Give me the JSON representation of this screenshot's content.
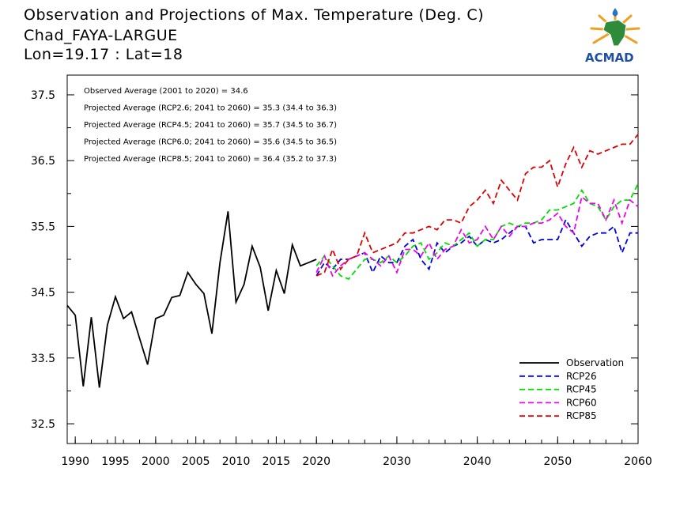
{
  "header": {
    "title": "Observation and Projections of Max. Temperature (Deg. C)",
    "station": "Chad_FAYA-LARGUE",
    "coords": "Lon=19.17 : Lat=18"
  },
  "logo": {
    "text": "ACMAD"
  },
  "annotations": [
    "Observed Average (2001 to 2020) = 34.6",
    "Projected Average (RCP2.6; 2041 to 2060) = 35.3 (34.4 to 36.3)",
    "Projected Average (RCP4.5; 2041 to 2060) = 35.7 (34.5 to 36.7)",
    "Projected Average (RCP6.0; 2041 to 2060) = 35.6 (34.5 to 36.5)",
    "Projected Average (RCP8.5; 2041 to 2060) = 36.4 (35.2 to 37.3)"
  ],
  "chart_data": {
    "type": "line",
    "xlim": [
      1989,
      2060
    ],
    "ylim": [
      32.2,
      37.8
    ],
    "x_ticks": [
      1990,
      1995,
      2000,
      2005,
      2010,
      2015,
      2020,
      2030,
      2040,
      2050,
      2060
    ],
    "y_ticks": [
      32.5,
      33.5,
      34.5,
      35.5,
      36.5,
      37.5
    ],
    "grid": false,
    "legend_position": "bottom-right",
    "series": [
      {
        "name": "Observation",
        "color": "#000000",
        "dashed": false,
        "x": [
          1989,
          1990,
          1991,
          1992,
          1993,
          1994,
          1995,
          1996,
          1997,
          1998,
          1999,
          2000,
          2001,
          2002,
          2003,
          2004,
          2005,
          2006,
          2007,
          2008,
          2009,
          2010,
          2011,
          2012,
          2013,
          2014,
          2015,
          2016,
          2017,
          2018,
          2019,
          2020
        ],
        "y": [
          34.3,
          34.15,
          33.07,
          34.12,
          33.05,
          34.0,
          34.43,
          34.1,
          34.2,
          33.8,
          33.4,
          34.1,
          34.15,
          34.42,
          34.45,
          34.8,
          34.62,
          34.48,
          33.87,
          34.95,
          35.73,
          34.35,
          34.62,
          35.2,
          34.88,
          34.22,
          34.83,
          34.48,
          35.22,
          34.9,
          34.95,
          35.0
        ]
      },
      {
        "name": "RCP26",
        "color": "#0000e0",
        "dashed": true,
        "x": [
          2020,
          2021,
          2022,
          2023,
          2024,
          2025,
          2026,
          2027,
          2028,
          2029,
          2030,
          2031,
          2032,
          2033,
          2034,
          2035,
          2036,
          2037,
          2038,
          2039,
          2040,
          2041,
          2042,
          2043,
          2044,
          2045,
          2046,
          2047,
          2048,
          2049,
          2050,
          2051,
          2052,
          2053,
          2054,
          2055,
          2056,
          2057,
          2058,
          2059,
          2060
        ],
        "y": [
          34.75,
          34.95,
          34.85,
          35.0,
          35.0,
          35.05,
          35.1,
          34.8,
          35.05,
          34.95,
          34.95,
          35.2,
          35.3,
          35.0,
          34.85,
          35.25,
          35.1,
          35.2,
          35.25,
          35.35,
          35.2,
          35.3,
          35.25,
          35.3,
          35.4,
          35.5,
          35.5,
          35.25,
          35.3,
          35.3,
          35.3,
          35.6,
          35.4,
          35.2,
          35.35,
          35.4,
          35.4,
          35.5,
          35.1,
          35.4,
          35.4
        ]
      },
      {
        "name": "RCP45",
        "color": "#00e000",
        "dashed": true,
        "x": [
          2020,
          2021,
          2022,
          2023,
          2024,
          2025,
          2026,
          2027,
          2028,
          2029,
          2030,
          2031,
          2032,
          2033,
          2034,
          2035,
          2036,
          2037,
          2038,
          2039,
          2040,
          2041,
          2042,
          2043,
          2044,
          2045,
          2046,
          2047,
          2048,
          2049,
          2050,
          2051,
          2052,
          2053,
          2054,
          2055,
          2056,
          2057,
          2058,
          2059,
          2060
        ],
        "y": [
          34.9,
          35.05,
          34.9,
          34.75,
          34.7,
          34.85,
          35.0,
          35.0,
          34.95,
          35.05,
          34.95,
          35.05,
          35.2,
          35.25,
          35.0,
          35.1,
          35.25,
          35.2,
          35.3,
          35.4,
          35.2,
          35.3,
          35.3,
          35.5,
          35.55,
          35.5,
          35.55,
          35.55,
          35.6,
          35.75,
          35.75,
          35.8,
          35.85,
          36.05,
          35.85,
          35.8,
          35.6,
          35.8,
          35.9,
          35.9,
          36.15
        ]
      },
      {
        "name": "RCP60",
        "color": "#f000f0",
        "dashed": true,
        "x": [
          2020,
          2021,
          2022,
          2023,
          2024,
          2025,
          2026,
          2027,
          2028,
          2029,
          2030,
          2031,
          2032,
          2033,
          2034,
          2035,
          2036,
          2037,
          2038,
          2039,
          2040,
          2041,
          2042,
          2043,
          2044,
          2045,
          2046,
          2047,
          2048,
          2049,
          2050,
          2051,
          2052,
          2053,
          2054,
          2055,
          2056,
          2057,
          2058,
          2059,
          2060
        ],
        "y": [
          34.8,
          35.05,
          34.75,
          34.9,
          35.0,
          35.05,
          35.1,
          35.0,
          34.9,
          35.05,
          34.8,
          35.15,
          35.15,
          35.05,
          35.25,
          35.0,
          35.15,
          35.2,
          35.45,
          35.25,
          35.3,
          35.5,
          35.3,
          35.5,
          35.35,
          35.5,
          35.5,
          35.55,
          35.55,
          35.6,
          35.7,
          35.5,
          35.4,
          35.95,
          35.85,
          35.85,
          35.6,
          35.9,
          35.55,
          35.9,
          35.8
        ]
      },
      {
        "name": "RCP85",
        "color": "#e00000",
        "dashed": true,
        "x": [
          2020,
          2021,
          2022,
          2023,
          2024,
          2025,
          2026,
          2027,
          2028,
          2029,
          2030,
          2031,
          2032,
          2033,
          2034,
          2035,
          2036,
          2037,
          2038,
          2039,
          2040,
          2041,
          2042,
          2043,
          2044,
          2045,
          2046,
          2047,
          2048,
          2049,
          2050,
          2051,
          2052,
          2053,
          2054,
          2055,
          2056,
          2057,
          2058,
          2059,
          2060
        ],
        "y": [
          34.75,
          34.8,
          35.15,
          34.85,
          35.0,
          35.05,
          35.4,
          35.1,
          35.15,
          35.2,
          35.25,
          35.4,
          35.4,
          35.45,
          35.5,
          35.45,
          35.6,
          35.6,
          35.55,
          35.8,
          35.9,
          36.05,
          35.85,
          36.2,
          36.05,
          35.9,
          36.3,
          36.4,
          36.4,
          36.5,
          36.1,
          36.45,
          36.7,
          36.4,
          36.65,
          36.6,
          36.65,
          36.7,
          36.75,
          36.75,
          36.9
        ]
      }
    ]
  }
}
